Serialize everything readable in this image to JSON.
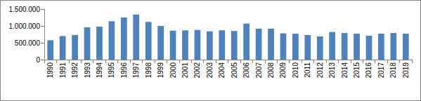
{
  "chart_data": {
    "type": "bar",
    "categories": [
      "1990",
      "1991",
      "1992",
      "1993",
      "1994",
      "1995",
      "1996",
      "1997",
      "1998",
      "1999",
      "2000",
      "2001",
      "2002",
      "2003",
      "2004",
      "2005",
      "2006",
      "2007",
      "2008",
      "2009",
      "2010",
      "2011",
      "2012",
      "2013",
      "2014",
      "2015",
      "2016",
      "2017",
      "2018",
      "2019"
    ],
    "values": [
      575000,
      700000,
      730000,
      960000,
      980000,
      1140000,
      1250000,
      1340000,
      1120000,
      1000000,
      860000,
      870000,
      880000,
      840000,
      870000,
      850000,
      1070000,
      920000,
      920000,
      780000,
      770000,
      730000,
      690000,
      820000,
      790000,
      770000,
      710000,
      770000,
      790000,
      770000
    ],
    "color": "#4f81bd",
    "ylim": [
      0,
      1500000
    ],
    "yticks": [
      0,
      {
        "value": 500000,
        "label": "500.000"
      },
      {
        "value": 1000000,
        "label": "1.000.000"
      },
      {
        "value": 1500000,
        "label": "1.500.000"
      }
    ],
    "grid": false
  }
}
